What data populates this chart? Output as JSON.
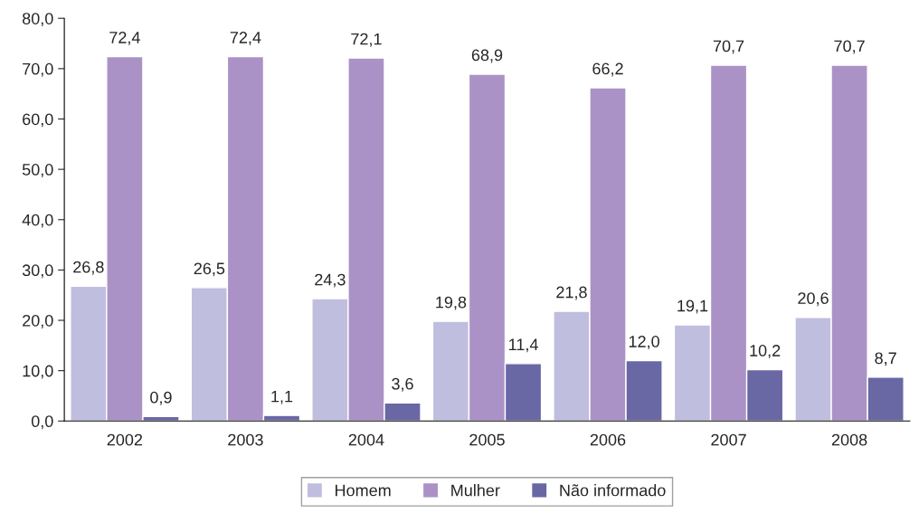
{
  "chart_data": {
    "type": "bar",
    "categories": [
      "2002",
      "2003",
      "2004",
      "2005",
      "2006",
      "2007",
      "2008"
    ],
    "series": [
      {
        "name": "Homem",
        "color": "#c0bedf",
        "values": [
          26.8,
          26.5,
          24.3,
          19.8,
          21.8,
          19.1,
          20.6
        ],
        "value_labels": [
          "26,8",
          "26,5",
          "24,3",
          "19,8",
          "21,8",
          "19,1",
          "20,6"
        ]
      },
      {
        "name": "Mulher",
        "color": "#ab92c6",
        "values": [
          72.4,
          72.4,
          72.1,
          68.9,
          66.2,
          70.7,
          70.7
        ],
        "value_labels": [
          "72,4",
          "72,4",
          "72,1",
          "68,9",
          "66,2",
          "70,7",
          "70,7"
        ]
      },
      {
        "name": "Não informado",
        "color": "#6967a4",
        "values": [
          0.9,
          1.1,
          3.6,
          11.4,
          12.0,
          10.2,
          8.7
        ],
        "value_labels": [
          "0,9",
          "1,1",
          "3,6",
          "11,4",
          "12,0",
          "10,2",
          "8,7"
        ]
      }
    ],
    "ylim": [
      0,
      80
    ],
    "yticks": [
      {
        "value": 0,
        "label": "0,0"
      },
      {
        "value": 10,
        "label": "10,0"
      },
      {
        "value": 20,
        "label": "20,0"
      },
      {
        "value": 30,
        "label": "30,0"
      },
      {
        "value": 40,
        "label": "40,0"
      },
      {
        "value": 50,
        "label": "50,0"
      },
      {
        "value": 60,
        "label": "60,0"
      },
      {
        "value": 70,
        "label": "70,0"
      },
      {
        "value": 80,
        "label": "80,0"
      }
    ],
    "grid": false,
    "legend": "bottom"
  }
}
